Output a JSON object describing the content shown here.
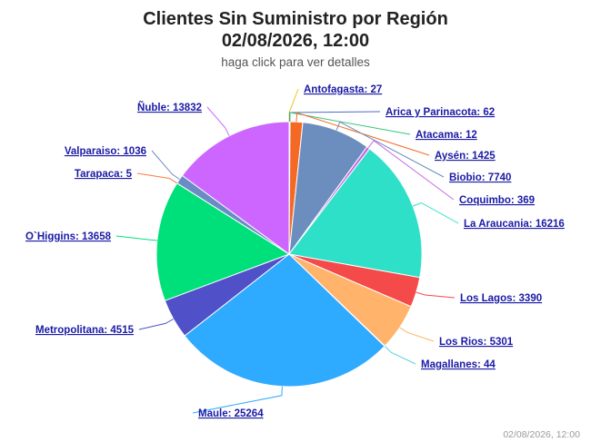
{
  "chart_data": {
    "type": "pie",
    "title": "Clientes Sin Suministro por Región",
    "subtitle_line2": "02/08/2026, 12:00",
    "subtitle": "haga click para ver detalles",
    "credit": "02/08/2026, 12:00",
    "slices": [
      {
        "name": "Antofagasta",
        "value": 27,
        "label": "Antofagasta: 27",
        "color": "#f0c419"
      },
      {
        "name": "Arica y Parinacota",
        "value": 62,
        "label": "Arica y Parinacota: 62",
        "color": "#4b6cc8"
      },
      {
        "name": "Atacama",
        "value": 12,
        "label": "Atacama: 12",
        "color": "#37c77a"
      },
      {
        "name": "Aysén",
        "value": 1425,
        "label": "Aysén: 1425",
        "color": "#f46a25"
      },
      {
        "name": "Biobio",
        "value": 7740,
        "label": "Biobio: 7740",
        "color": "#6c8ebf"
      },
      {
        "name": "Coquimbo",
        "value": 369,
        "label": "Coquimbo: 369",
        "color": "#c66be3"
      },
      {
        "name": "La Araucania",
        "value": 16216,
        "label": "La Araucania: 16216",
        "color": "#2ee0c8"
      },
      {
        "name": "Los Lagos",
        "value": 3390,
        "label": "Los Lagos: 3390",
        "color": "#f44a4a"
      },
      {
        "name": "Los Rios",
        "value": 5301,
        "label": "Los Rios: 5301",
        "color": "#ffb36b"
      },
      {
        "name": "Magallanes",
        "value": 44,
        "label": "Magallanes: 44",
        "color": "#5fd3e0"
      },
      {
        "name": "Maule",
        "value": 25264,
        "label": "Maule: 25264",
        "color": "#2eaaff"
      },
      {
        "name": "Metropolitana",
        "value": 4515,
        "label": "Metropolitana: 4515",
        "color": "#5050c8"
      },
      {
        "name": "O`Higgins",
        "value": 13658,
        "label": "O`Higgins: 13658",
        "color": "#00e07a"
      },
      {
        "name": "Tarapaca",
        "value": 5,
        "label": "Tarapaca: 5",
        "color": "#ff7a3d"
      },
      {
        "name": "Valparaiso",
        "value": 1036,
        "label": "Valparaiso: 1036",
        "color": "#6a8cc4"
      },
      {
        "name": "Ñuble",
        "value": 13832,
        "label": "Ñuble: 13832",
        "color": "#cc66ff"
      }
    ]
  }
}
